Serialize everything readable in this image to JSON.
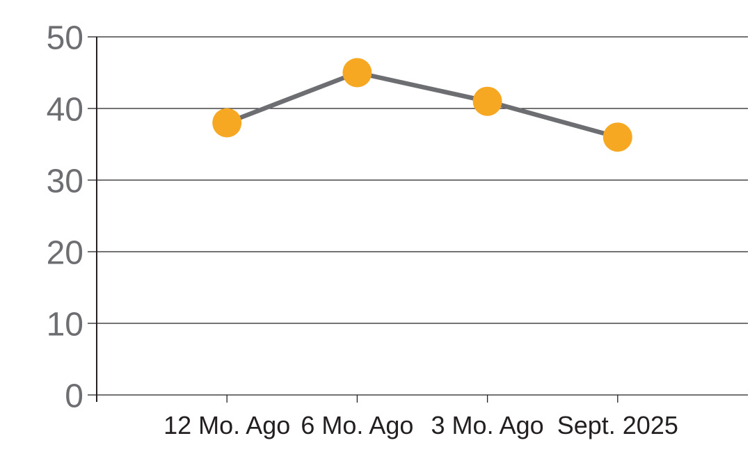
{
  "chart_data": {
    "type": "line",
    "categories": [
      "12 Mo. Ago",
      "6 Mo. Ago",
      "3 Mo. Ago",
      "Sept. 2025"
    ],
    "values": [
      38,
      45,
      41,
      36
    ],
    "series": [
      {
        "name": "",
        "values": [
          38,
          45,
          41,
          36
        ]
      }
    ],
    "title": "",
    "xlabel": "",
    "ylabel": "",
    "ylim": [
      0,
      50
    ],
    "yticks": [
      0,
      10,
      20,
      30,
      40,
      50
    ],
    "grid": true,
    "legend_position": "none",
    "colors": {
      "marker": "#F7A823",
      "line": "#6D6E71",
      "y_tick_label": "#6D6E71",
      "x_tick_label": "#231F20",
      "gridline": "#231F20",
      "axis": "#231F20",
      "background": "#FFFFFF"
    }
  }
}
